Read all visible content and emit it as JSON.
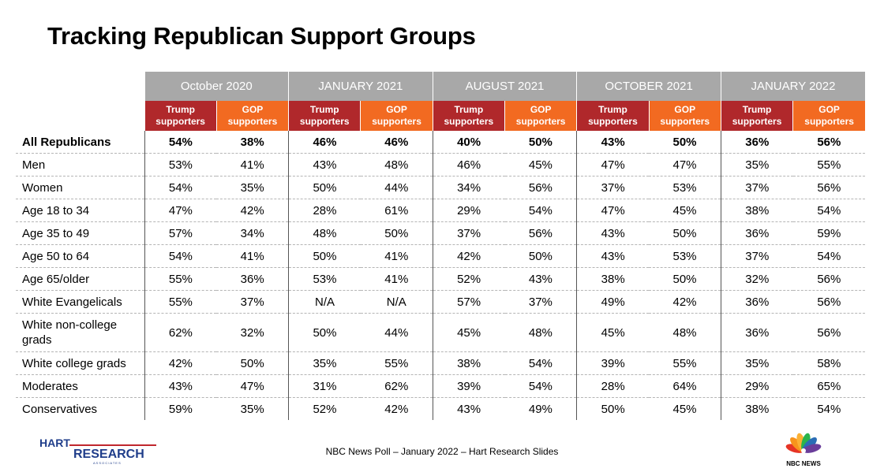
{
  "title": "Tracking Republican Support Groups",
  "chart_data": {
    "type": "table",
    "waves": [
      "October 2020",
      "JANUARY 2021",
      "AUGUST 2021",
      "OCTOBER 2021",
      "JANUARY 2022"
    ],
    "group_labels": {
      "trump": [
        "Trump",
        "supporters"
      ],
      "gop": [
        "GOP",
        "supporters"
      ]
    },
    "rows": [
      {
        "label": "All Republicans",
        "bold": true,
        "values": [
          "54%",
          "38%",
          "46%",
          "46%",
          "40%",
          "50%",
          "43%",
          "50%",
          "36%",
          "56%"
        ]
      },
      {
        "label": "Men",
        "values": [
          "53%",
          "41%",
          "43%",
          "48%",
          "46%",
          "45%",
          "47%",
          "47%",
          "35%",
          "55%"
        ]
      },
      {
        "label": "Women",
        "values": [
          "54%",
          "35%",
          "50%",
          "44%",
          "34%",
          "56%",
          "37%",
          "53%",
          "37%",
          "56%"
        ]
      },
      {
        "label": "Age 18 to 34",
        "values": [
          "47%",
          "42%",
          "28%",
          "61%",
          "29%",
          "54%",
          "47%",
          "45%",
          "38%",
          "54%"
        ]
      },
      {
        "label": "Age 35 to 49",
        "values": [
          "57%",
          "34%",
          "48%",
          "50%",
          "37%",
          "56%",
          "43%",
          "50%",
          "36%",
          "59%"
        ]
      },
      {
        "label": "Age 50 to 64",
        "values": [
          "54%",
          "41%",
          "50%",
          "41%",
          "42%",
          "50%",
          "43%",
          "53%",
          "37%",
          "54%"
        ]
      },
      {
        "label": "Age 65/older",
        "values": [
          "55%",
          "36%",
          "53%",
          "41%",
          "52%",
          "43%",
          "38%",
          "50%",
          "32%",
          "56%"
        ]
      },
      {
        "label": "White Evangelicals",
        "values": [
          "55%",
          "37%",
          "N/A",
          "N/A",
          "57%",
          "37%",
          "49%",
          "42%",
          "36%",
          "56%"
        ]
      },
      {
        "label": "White non-college grads",
        "tall": true,
        "values": [
          "62%",
          "32%",
          "50%",
          "44%",
          "45%",
          "48%",
          "45%",
          "48%",
          "36%",
          "56%"
        ]
      },
      {
        "label": "White college grads",
        "values": [
          "42%",
          "50%",
          "35%",
          "55%",
          "38%",
          "54%",
          "39%",
          "55%",
          "35%",
          "58%"
        ]
      },
      {
        "label": "Moderates",
        "values": [
          "43%",
          "47%",
          "31%",
          "62%",
          "39%",
          "54%",
          "28%",
          "64%",
          "29%",
          "65%"
        ]
      },
      {
        "label": "Conservatives",
        "values": [
          "59%",
          "35%",
          "52%",
          "42%",
          "43%",
          "49%",
          "50%",
          "45%",
          "38%",
          "54%"
        ]
      }
    ]
  },
  "colors": {
    "wave_header": "#a8a8a8",
    "trump_header": "#b0282b",
    "gop_header": "#f26a21"
  },
  "footer": {
    "text": "NBC News Poll – January 2022 – Hart Research Slides"
  },
  "logos": {
    "hart": {
      "line1": "HART",
      "line2": "RESEARCH",
      "line3": "A S S O C I A T E S"
    },
    "nbc": {
      "text": "NBC NEWS",
      "icon": "peacock-icon"
    }
  }
}
